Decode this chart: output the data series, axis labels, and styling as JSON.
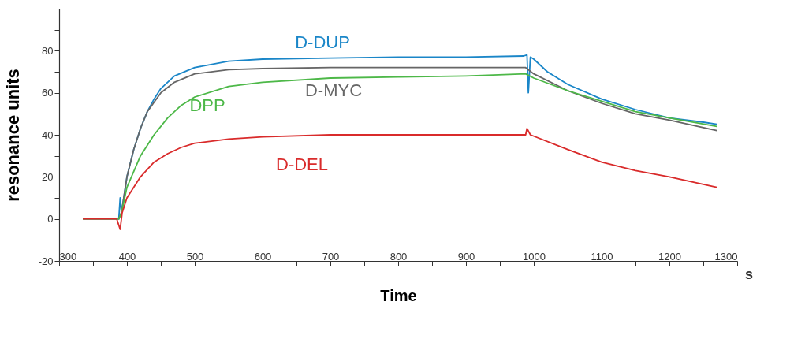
{
  "chart_data": {
    "type": "line",
    "xlabel": "Time",
    "ylabel": "resonance units",
    "annotations": [
      "s"
    ],
    "xlim": [
      300,
      1300
    ],
    "ylim": [
      -20,
      100
    ],
    "xticks": [
      300,
      {
        "value": 350,
        "label": null
      },
      400,
      {
        "value": 450,
        "label": null
      },
      500,
      {
        "value": 550,
        "label": null
      },
      600,
      {
        "value": 650,
        "label": null
      },
      700,
      {
        "value": 750,
        "label": null
      },
      800,
      {
        "value": 850,
        "label": null
      },
      900,
      {
        "value": 950,
        "label": null
      },
      1000,
      {
        "value": 1050,
        "label": null
      },
      1100,
      {
        "value": 1150,
        "label": null
      },
      1200,
      {
        "value": 1250,
        "label": null
      },
      1300
    ],
    "yticks": [
      -20,
      {
        "value": -10,
        "label": null
      },
      0,
      {
        "value": 10,
        "label": null
      },
      20,
      {
        "value": 30,
        "label": null
      },
      40,
      {
        "value": 50,
        "label": null
      },
      60,
      {
        "value": 70,
        "label": null
      },
      80,
      {
        "value": 90,
        "label": null
      },
      {
        "value": 100,
        "label": null
      }
    ],
    "grid": false,
    "marker": "none",
    "line_style": "solid",
    "series": [
      {
        "name": "D-DUP",
        "color": "#1a86c8",
        "x": [
          335,
          388,
          390,
          392,
          400,
          410,
          420,
          430,
          440,
          450,
          470,
          500,
          550,
          600,
          700,
          800,
          900,
          985,
          990,
          992,
          995,
          1000,
          1020,
          1050,
          1100,
          1150,
          1200,
          1250,
          1270
        ],
        "values": [
          0,
          0,
          10,
          3,
          20,
          33,
          43,
          51,
          57,
          62,
          68,
          72,
          75,
          76,
          76.5,
          77,
          77,
          77.5,
          78,
          60,
          77,
          76,
          70,
          64,
          57,
          52,
          48,
          46,
          45
        ]
      },
      {
        "name": "D-MYC",
        "color": "#666666",
        "x": [
          335,
          388,
          392,
          400,
          410,
          420,
          430,
          450,
          470,
          500,
          550,
          600,
          700,
          800,
          900,
          988,
          1000,
          1050,
          1100,
          1150,
          1200,
          1270
        ],
        "values": [
          0,
          0,
          3,
          20,
          33,
          43,
          51,
          60,
          65,
          69,
          71,
          71.5,
          72,
          72,
          72,
          72,
          69,
          61,
          55,
          50,
          47,
          42
        ]
      },
      {
        "name": "DPP",
        "color": "#4db848",
        "x": [
          335,
          388,
          392,
          400,
          420,
          440,
          460,
          480,
          500,
          550,
          600,
          700,
          800,
          900,
          988,
          1000,
          1050,
          1100,
          1150,
          1200,
          1270
        ],
        "values": [
          0,
          0,
          3,
          15,
          30,
          40,
          48,
          54,
          58,
          63,
          65,
          67,
          67.5,
          68,
          69,
          67,
          61,
          56,
          51,
          48,
          44
        ]
      },
      {
        "name": "D-DEL",
        "color": "#d92b2b",
        "x": [
          335,
          385,
          390,
          393,
          400,
          420,
          440,
          460,
          480,
          500,
          550,
          600,
          700,
          900,
          988,
          990,
          995,
          1050,
          1100,
          1150,
          1200,
          1270
        ],
        "values": [
          0,
          0,
          -5,
          3,
          10,
          20,
          27,
          31,
          34,
          36,
          38,
          39,
          40,
          40,
          40,
          43,
          40,
          33,
          27,
          23,
          20,
          15
        ]
      }
    ]
  }
}
